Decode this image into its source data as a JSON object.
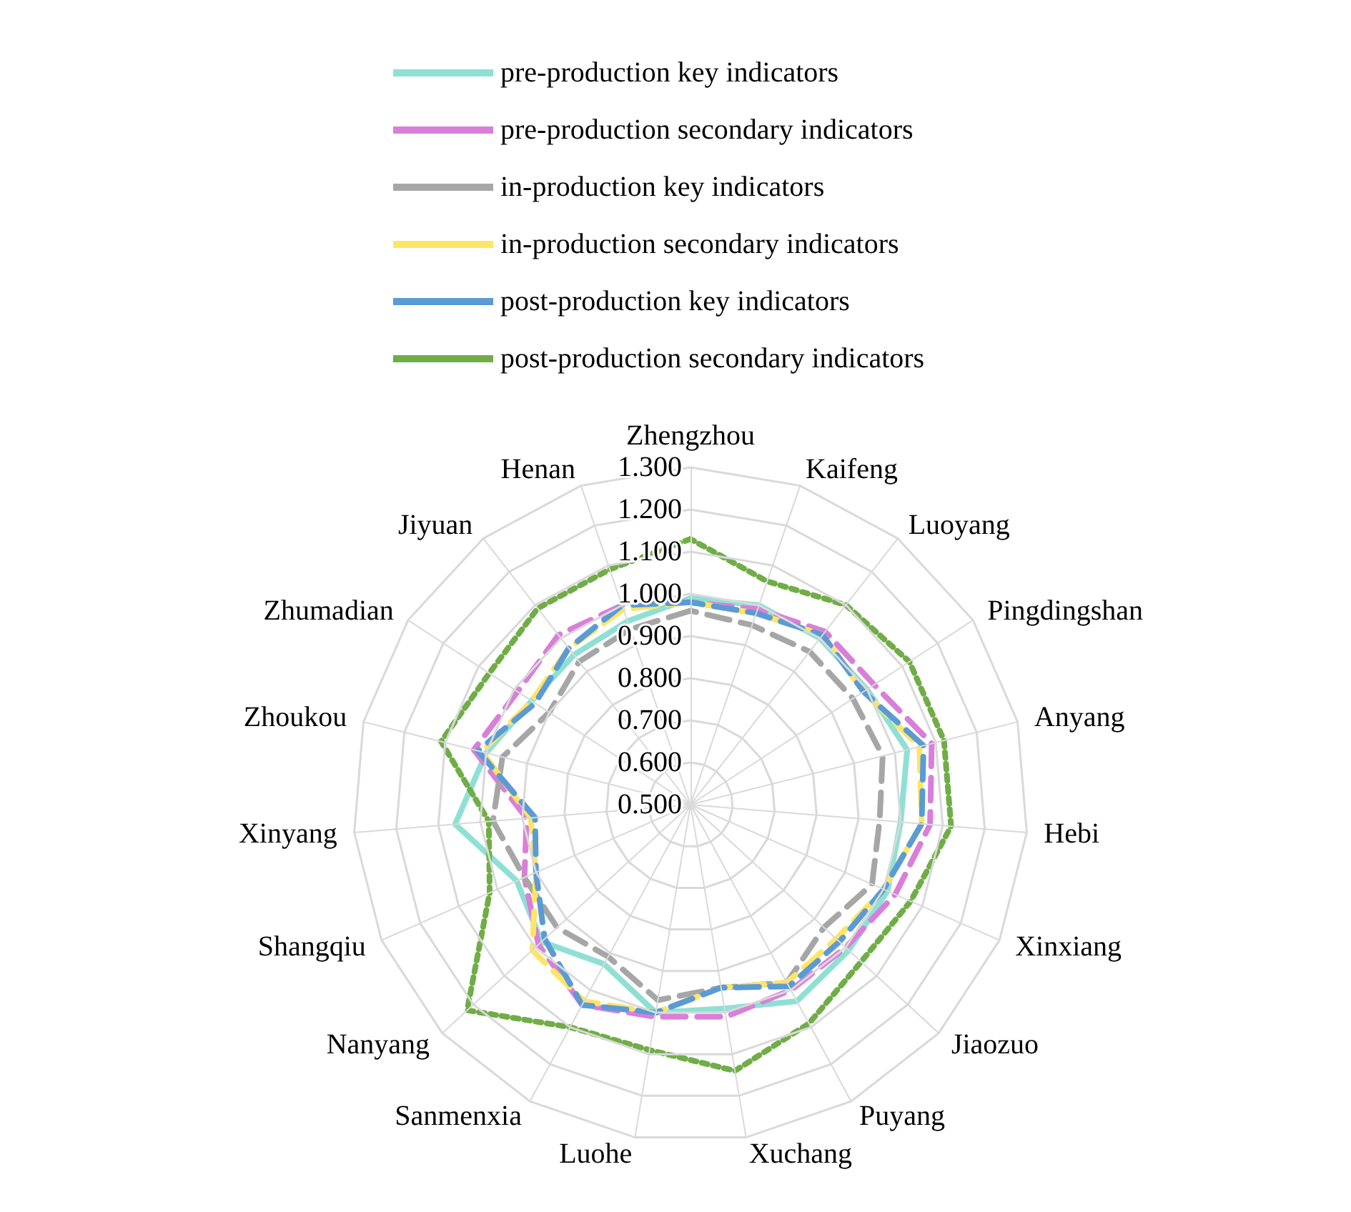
{
  "chart_data": {
    "type": "radar",
    "categories": [
      "Zhengzhou",
      "Kaifeng",
      "Luoyang",
      "Pingdingshan",
      "Anyang",
      "Hebi",
      "Xinxiang",
      "Jiaozuo",
      "Puyang",
      "Xuchang",
      "Luohe",
      "Sanmenxia",
      "Nanyang",
      "Shangqiu",
      "Xinyang",
      "Zhoukou",
      "Zhumadian",
      "Jiyuan",
      "Henan"
    ],
    "ylim": [
      0.5,
      1.3
    ],
    "yticks": [
      {
        "value": 0.5,
        "label": "0.500"
      },
      {
        "value": 0.6,
        "label": "0.600"
      },
      {
        "value": 0.7,
        "label": "0.700"
      },
      {
        "value": 0.8,
        "label": "0.800"
      },
      {
        "value": 0.9,
        "label": "0.900"
      },
      {
        "value": 1.0,
        "label": "1.000"
      },
      {
        "value": 1.1,
        "label": "1.100"
      },
      {
        "value": 1.2,
        "label": "1.200"
      },
      {
        "value": 1.3,
        "label": "1.300"
      }
    ],
    "legend": "top",
    "marker": "none",
    "series": [
      {
        "name": "pre-production key indicators",
        "color": "#8fe0d4",
        "line_style": "solid",
        "values": [
          0.99,
          1.0,
          1.0,
          1.0,
          1.03,
          1.0,
          1.01,
          1.01,
          1.03,
          0.99,
          1.0,
          0.93,
          0.98,
          0.95,
          1.06,
          1.0,
          0.95,
          0.95,
          0.96
        ]
      },
      {
        "name": "pre-production secondary indicators",
        "color": "#d97fd9",
        "line_style": "dashed",
        "values": [
          0.98,
          0.99,
          1.02,
          1.02,
          1.09,
          1.07,
          1.03,
          1.0,
          1.0,
          1.01,
          1.01,
          1.04,
          0.99,
          0.93,
          0.89,
          1.03,
          0.99,
          1.01,
          1.0
        ]
      },
      {
        "name": "in-production key indicators",
        "color": "#a6a6a6",
        "line_style": "dashed",
        "values": [
          0.96,
          0.95,
          0.96,
          0.96,
          0.97,
          0.95,
          0.97,
          0.93,
          0.98,
          0.94,
          0.97,
          0.91,
          0.93,
          0.93,
          0.97,
          0.96,
          0.9,
          0.93,
          0.94
        ]
      },
      {
        "name": "in-production secondary indicators",
        "color": "#ffe566",
        "line_style": "dashed",
        "values": [
          0.98,
          0.98,
          1.01,
          0.99,
          1.06,
          1.05,
          1.0,
          0.97,
          0.98,
          0.94,
          1.0,
          1.03,
          1.01,
          0.9,
          0.88,
          1.01,
          0.95,
          0.97,
          0.99
        ]
      },
      {
        "name": "post-production key indicators",
        "color": "#5b9bd5",
        "line_style": "dashed",
        "values": [
          0.98,
          0.98,
          1.01,
          0.99,
          1.07,
          1.05,
          1.0,
          0.98,
          0.99,
          0.94,
          1.0,
          1.04,
          0.97,
          0.9,
          0.87,
          1.02,
          0.94,
          0.97,
          1.0
        ]
      },
      {
        "name": "post-production secondary indicators",
        "color": "#70ad47",
        "line_style": "dotted",
        "values": [
          1.13,
          1.06,
          1.1,
          1.12,
          1.12,
          1.12,
          1.07,
          1.05,
          1.09,
          1.14,
          1.09,
          1.1,
          1.22,
          1.02,
          0.98,
          1.11,
          1.07,
          1.09,
          1.09
        ]
      }
    ]
  }
}
